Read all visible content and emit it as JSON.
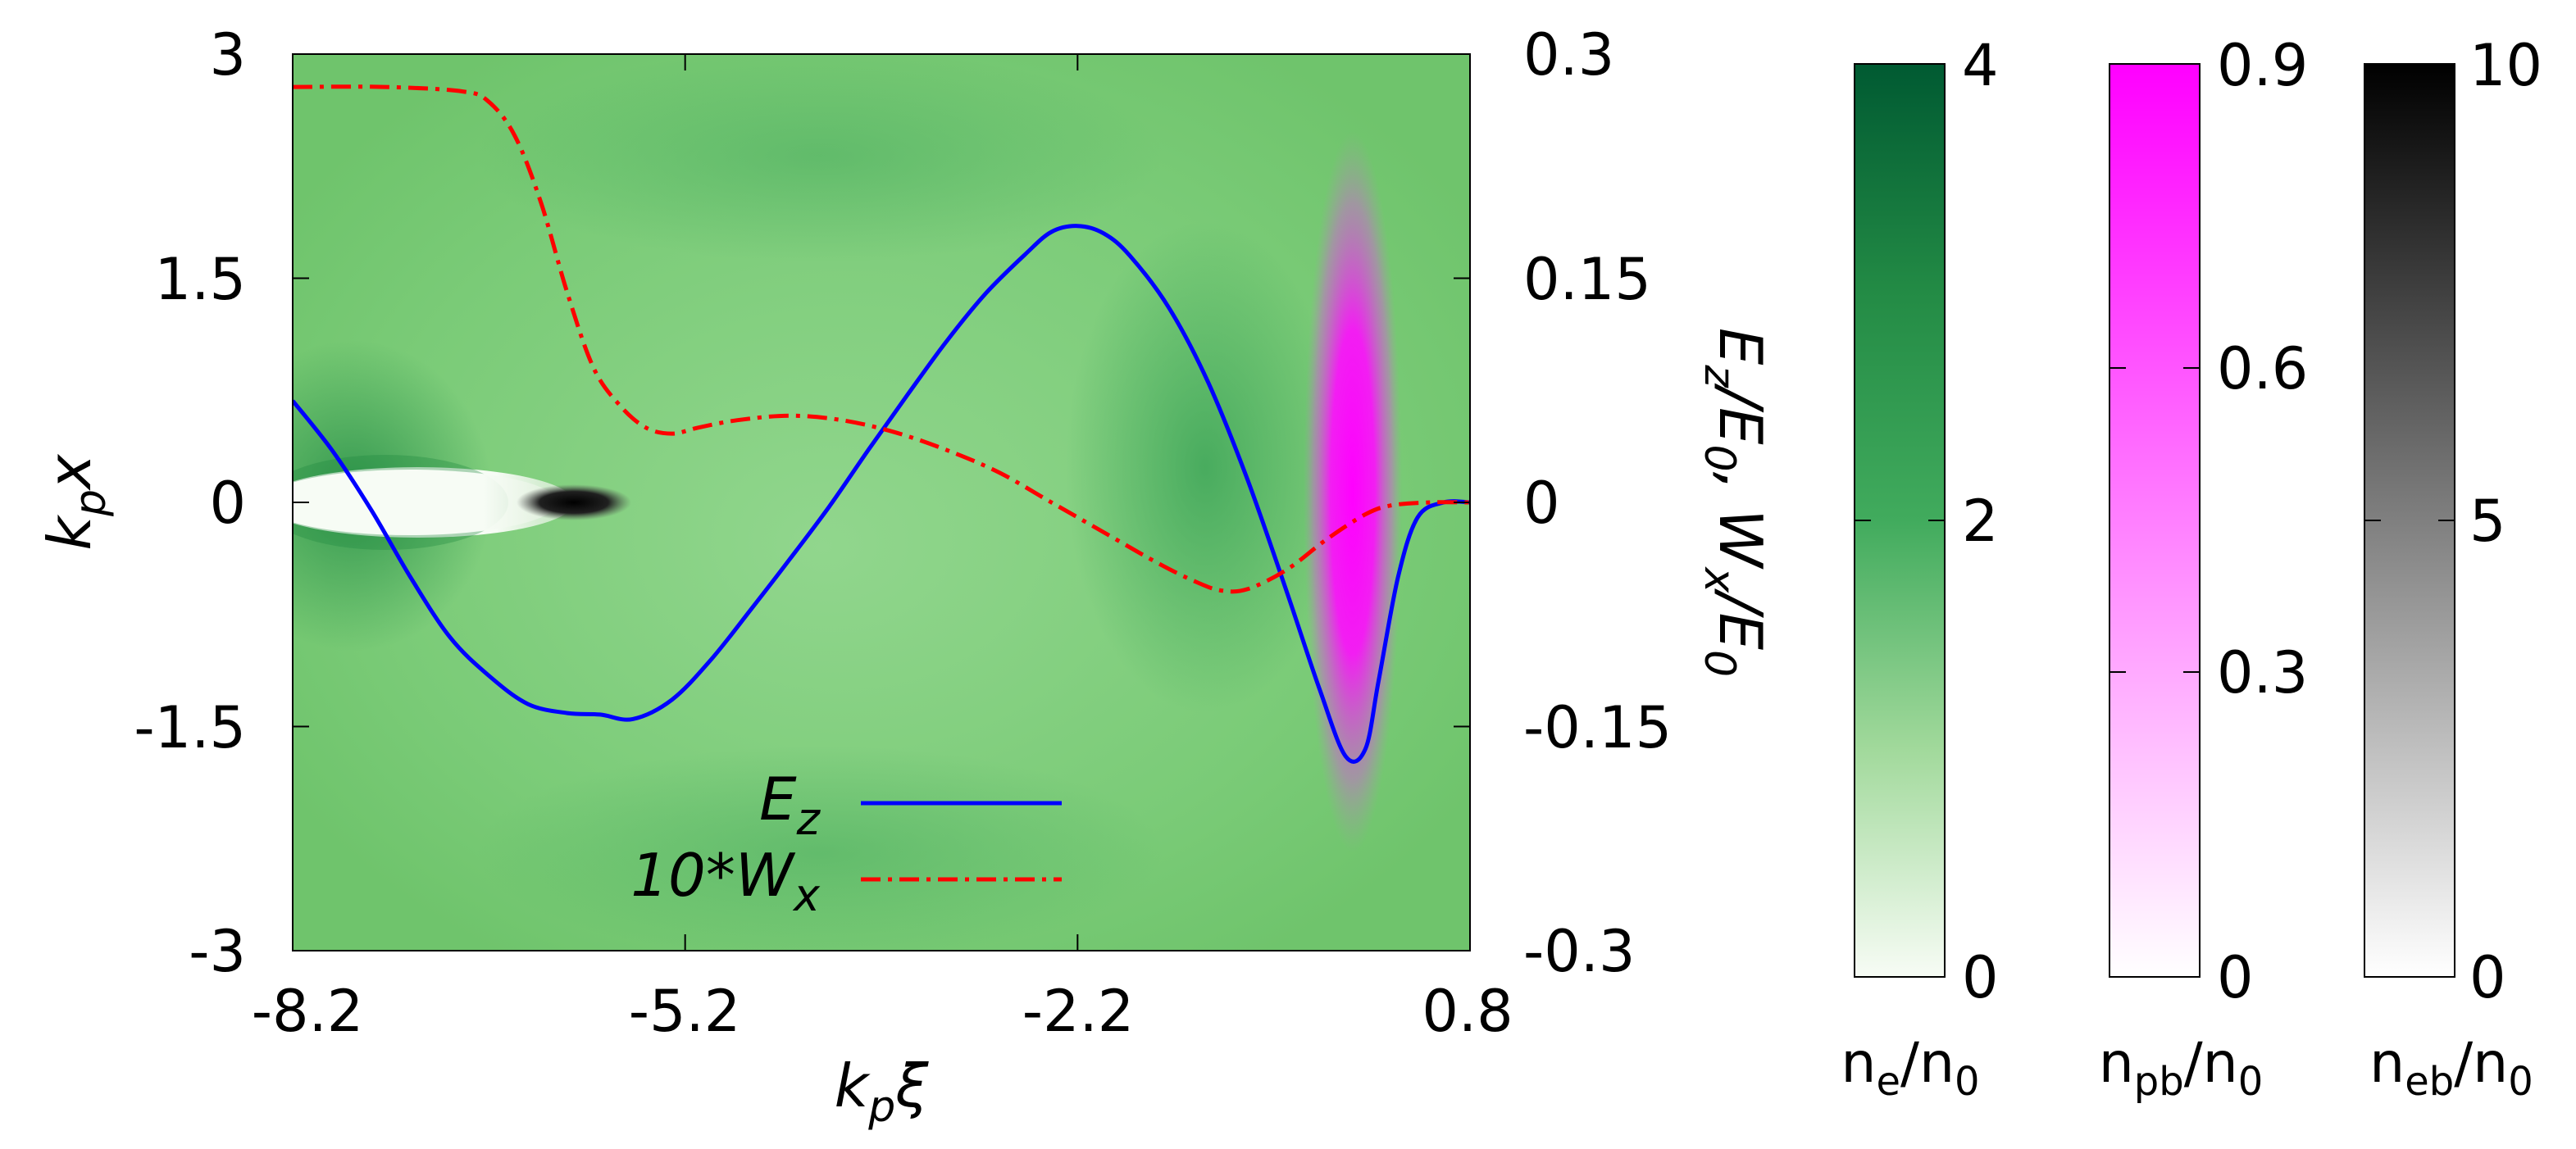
{
  "chart_data": {
    "type": "line",
    "main_plot": {
      "xlabel": {
        "base": "k",
        "sub": "p",
        "tail": "ξ"
      },
      "ylabel": {
        "base": "k",
        "sub": "p",
        "tail": "x"
      },
      "y2label": {
        "a": "E",
        "a_sub": "z",
        "b": "/E",
        "b_sub": "0",
        "c": ", W",
        "c_sub": "x",
        "d": "/E",
        "d_sub": "0"
      },
      "xlim": [
        -8.2,
        0.8
      ],
      "ylim": [
        -3,
        3
      ],
      "y2lim": [
        -0.3,
        0.3
      ],
      "xticks": [
        "-8.2",
        "-5.2",
        "-2.2",
        "0.8"
      ],
      "yticks": [
        "3",
        "1.5",
        "0",
        "-1.5",
        "-3"
      ],
      "y2ticks": [
        "0.3",
        "0.15",
        "0",
        "-0.15",
        "-0.3"
      ],
      "background_colormap": "electron density n_e/n_0 (green)",
      "series": [
        {
          "name": "E_z",
          "legend": {
            "base": "E",
            "sub": "z"
          },
          "color": "#0000ff",
          "style": "solid",
          "x": [
            -8.2,
            -7.9,
            -7.6,
            -7.3,
            -7.0,
            -6.7,
            -6.4,
            -6.1,
            -5.85,
            -5.6,
            -5.3,
            -5.0,
            -4.7,
            -4.4,
            -4.1,
            -3.8,
            -3.5,
            -3.2,
            -2.9,
            -2.6,
            -2.4,
            -2.2,
            -2.0,
            -1.8,
            -1.5,
            -1.2,
            -0.9,
            -0.6,
            -0.35,
            -0.15,
            0.0,
            0.1,
            0.25,
            0.4,
            0.6,
            0.8
          ],
          "values": [
            0.068,
            0.035,
            -0.005,
            -0.05,
            -0.09,
            -0.116,
            -0.135,
            -0.141,
            -0.142,
            -0.145,
            -0.132,
            -0.105,
            -0.072,
            -0.038,
            -0.003,
            0.035,
            0.072,
            0.108,
            0.14,
            0.166,
            0.181,
            0.185,
            0.18,
            0.165,
            0.13,
            0.08,
            0.015,
            -0.06,
            -0.125,
            -0.17,
            -0.165,
            -0.12,
            -0.05,
            -0.01,
            0.0,
            0.0
          ]
        },
        {
          "name": "10*W_x",
          "legend": {
            "base": "10*W",
            "sub": "x"
          },
          "color": "#ff0000",
          "style": "dash-dot",
          "x": [
            -8.2,
            -7.5,
            -6.9,
            -6.7,
            -6.5,
            -6.3,
            -6.1,
            -5.9,
            -5.7,
            -5.5,
            -5.3,
            -5.1,
            -4.8,
            -4.4,
            -4.0,
            -3.6,
            -3.2,
            -2.8,
            -2.4,
            -2.0,
            -1.6,
            -1.3,
            -1.1,
            -0.9,
            -0.6,
            -0.3,
            0.0,
            0.2,
            0.5,
            0.8
          ],
          "values": [
            0.278,
            0.278,
            0.275,
            0.268,
            0.245,
            0.2,
            0.14,
            0.09,
            0.065,
            0.05,
            0.046,
            0.05,
            0.055,
            0.058,
            0.055,
            0.047,
            0.035,
            0.02,
            0.0,
            -0.02,
            -0.04,
            -0.053,
            -0.059,
            -0.058,
            -0.045,
            -0.025,
            -0.008,
            -0.002,
            0.0,
            0.0
          ]
        }
      ]
    },
    "colorbars": [
      {
        "name": "n_e/n_0",
        "label_base": "n",
        "label_sub": "e",
        "label_tail": "/n",
        "label_tail_sub": "0",
        "range": [
          0,
          4
        ],
        "ticks": [
          "4",
          "2",
          "0"
        ],
        "color_high": "#006837",
        "color_low": "#f7fcf5"
      },
      {
        "name": "n_pb/n_0",
        "label_base": "n",
        "label_sub": "pb",
        "label_tail": "/n",
        "label_tail_sub": "0",
        "range": [
          0,
          0.9
        ],
        "ticks": [
          "0.9",
          "0.6",
          "0.3",
          "0"
        ],
        "color_high": "#ff00ff",
        "color_low": "#ffffff"
      },
      {
        "name": "n_eb/n_0",
        "label_base": "n",
        "label_sub": "eb",
        "label_tail": "/n",
        "label_tail_sub": "0",
        "range": [
          0,
          10
        ],
        "ticks": [
          "10",
          "5",
          "0"
        ],
        "color_high": "#000000",
        "color_low": "#ffffff"
      }
    ]
  }
}
